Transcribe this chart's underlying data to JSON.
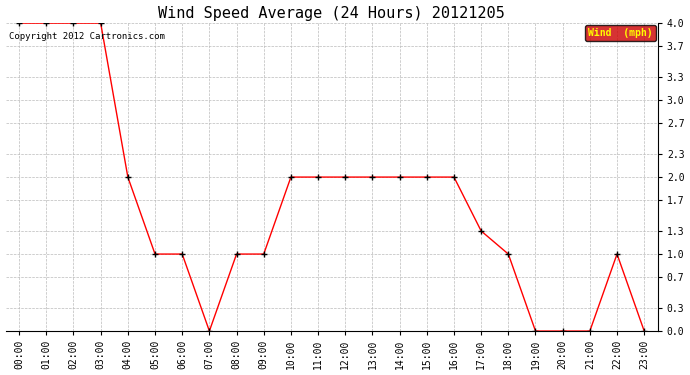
{
  "title": "Wind Speed Average (24 Hours) 20121205",
  "copyright": "Copyright 2012 Cartronics.com",
  "legend_label": "Wind  (mph)",
  "legend_bg": "#cc0000",
  "legend_text_color": "#ffff00",
  "x_labels": [
    "00:00",
    "01:00",
    "02:00",
    "03:00",
    "04:00",
    "05:00",
    "06:00",
    "07:00",
    "08:00",
    "09:00",
    "10:00",
    "11:00",
    "12:00",
    "13:00",
    "14:00",
    "15:00",
    "16:00",
    "17:00",
    "18:00",
    "19:00",
    "20:00",
    "21:00",
    "22:00",
    "23:00"
  ],
  "y_values": [
    4.0,
    4.0,
    4.0,
    4.0,
    2.0,
    1.0,
    1.0,
    0.0,
    1.0,
    1.0,
    2.0,
    2.0,
    2.0,
    2.0,
    2.0,
    2.0,
    2.0,
    1.3,
    1.0,
    0.0,
    0.0,
    0.0,
    1.0,
    0.0
  ],
  "y_ticks": [
    0.0,
    0.3,
    0.7,
    1.0,
    1.3,
    1.7,
    2.0,
    2.3,
    2.7,
    3.0,
    3.3,
    3.7,
    4.0
  ],
  "ylim": [
    0.0,
    4.0
  ],
  "line_color": "#ff0000",
  "marker_color": "#000000",
  "grid_color": "#bbbbbb",
  "bg_color": "#ffffff",
  "title_fontsize": 11,
  "tick_fontsize": 7,
  "copyright_fontsize": 6.5,
  "legend_fontsize": 7,
  "fig_width": 6.9,
  "fig_height": 3.75,
  "dpi": 100
}
